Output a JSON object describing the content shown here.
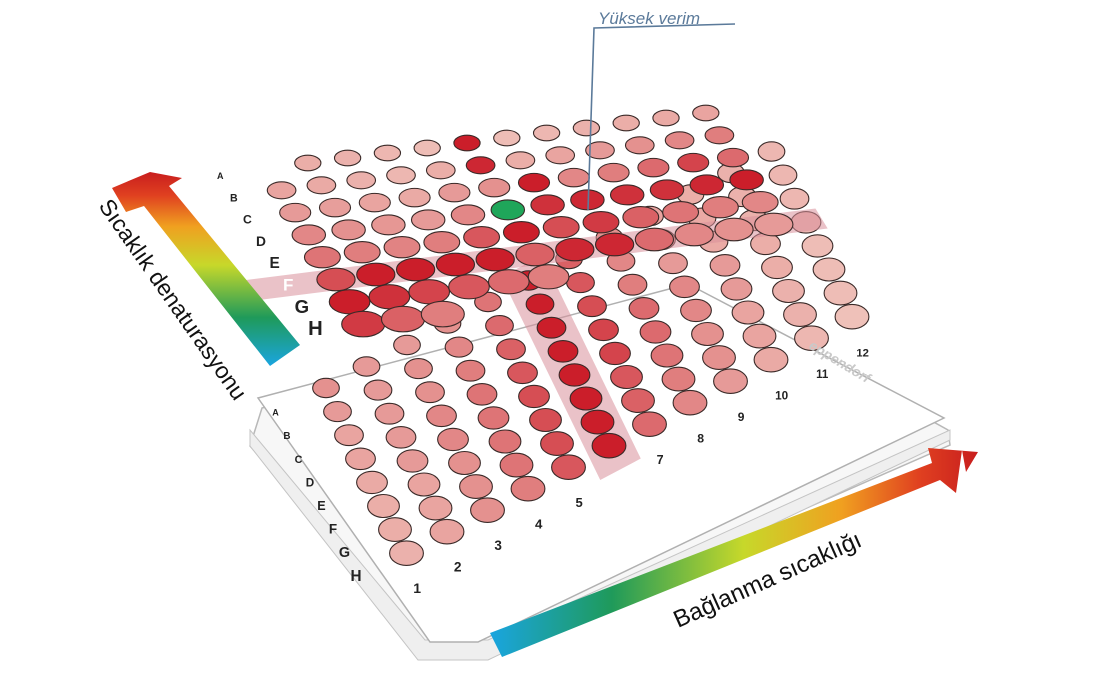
{
  "callout": {
    "label": "Yüksek verim"
  },
  "axes": {
    "denaturation_label": "Sıcaklık denaturasyonu",
    "annealing_label": "Bağlanma sıcaklığı"
  },
  "brand": {
    "text": "eppendorf"
  },
  "plate_top": {
    "row_labels": [
      "A",
      "B",
      "C",
      "D",
      "E",
      "F",
      "G",
      "H"
    ],
    "highlighted_row": "F",
    "visible_columns_per_row": [
      11,
      12,
      12,
      12,
      12,
      12,
      6,
      3
    ],
    "best_well": {
      "row": "D",
      "column": 6
    },
    "intensity_levels": [
      [
        0.2,
        0.18,
        0.15,
        0.12,
        0.95,
        0.12,
        0.15,
        0.18,
        0.2,
        0.22,
        0.25
      ],
      [
        0.25,
        0.22,
        0.18,
        0.15,
        0.2,
        0.9,
        0.2,
        0.25,
        0.3,
        0.35,
        0.4,
        0.45
      ],
      [
        0.3,
        0.28,
        0.25,
        0.22,
        0.3,
        0.35,
        0.95,
        0.4,
        0.45,
        0.55,
        0.75,
        0.55
      ],
      [
        0.4,
        0.35,
        0.32,
        0.3,
        0.4,
        0.95,
        0.85,
        0.9,
        0.85,
        0.85,
        0.9,
        0.95
      ],
      [
        0.5,
        0.45,
        0.42,
        0.45,
        0.65,
        0.95,
        0.7,
        0.8,
        0.6,
        0.5,
        0.45,
        0.4
      ],
      [
        0.7,
        0.95,
        0.95,
        0.95,
        0.95,
        0.6,
        0.9,
        0.9,
        0.55,
        0.4,
        0.35,
        0.3
      ],
      [
        0.95,
        0.85,
        0.75,
        0.65,
        0.55,
        0.45
      ],
      [
        0.8,
        0.6,
        0.45
      ]
    ]
  },
  "plate_bottom": {
    "row_labels": [
      "A",
      "B",
      "C",
      "D",
      "E",
      "F",
      "G",
      "H"
    ],
    "column_labels": [
      "1",
      "2",
      "3",
      "4",
      "5",
      "6",
      "7",
      "8",
      "9",
      "10",
      "11",
      "12"
    ],
    "highlighted_column": "6",
    "intensity_levels": [
      [
        0.35,
        0.3,
        0.3,
        0.35,
        0.5,
        0.95,
        0.6,
        0.35,
        0.25,
        0.2,
        0.18,
        0.15
      ],
      [
        0.3,
        0.3,
        0.35,
        0.4,
        0.55,
        0.95,
        0.65,
        0.4,
        0.3,
        0.22,
        0.18,
        0.15
      ],
      [
        0.25,
        0.3,
        0.35,
        0.45,
        0.6,
        0.95,
        0.7,
        0.45,
        0.3,
        0.22,
        0.18,
        0.15
      ],
      [
        0.25,
        0.3,
        0.4,
        0.5,
        0.65,
        0.95,
        0.75,
        0.55,
        0.4,
        0.3,
        0.2,
        0.15
      ],
      [
        0.22,
        0.3,
        0.4,
        0.5,
        0.7,
        0.95,
        0.75,
        0.55,
        0.4,
        0.3,
        0.2,
        0.12
      ],
      [
        0.2,
        0.25,
        0.35,
        0.5,
        0.7,
        0.95,
        0.65,
        0.5,
        0.35,
        0.25,
        0.18,
        0.12
      ],
      [
        0.2,
        0.25,
        0.35,
        0.5,
        0.7,
        0.95,
        0.6,
        0.45,
        0.35,
        0.25,
        0.18,
        0.12
      ],
      [
        0.18,
        0.25,
        0.35,
        0.45,
        0.65,
        0.95,
        0.55,
        0.4,
        0.3,
        0.22,
        0.15,
        0.1
      ]
    ]
  },
  "colors": {
    "well_low": "#f3d4ca",
    "well_high": "#c91422",
    "well_stroke": "#3a2a28",
    "best_well": "#1fa65a",
    "highlight_band": "#d9909a",
    "callout_line": "#5b7a9a",
    "gradient": [
      "#1aa5e0",
      "#1f9a5a",
      "#c7d82a",
      "#f0a020",
      "#e04020",
      "#c81e1e"
    ]
  }
}
